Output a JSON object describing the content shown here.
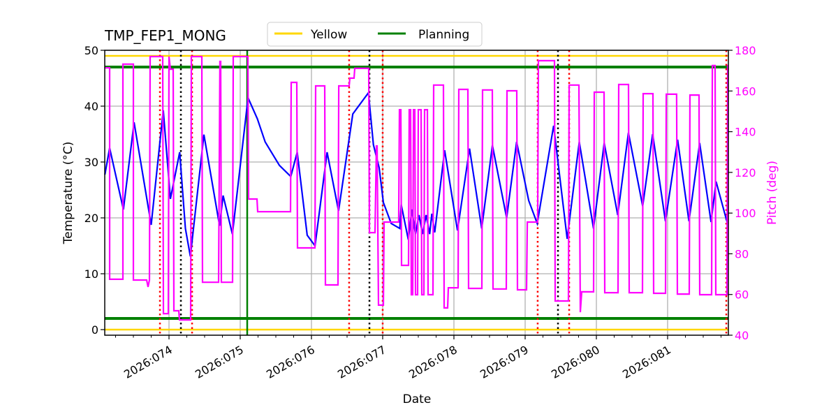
{
  "chart_data": {
    "type": "line",
    "title": "TMP_FEP1_MONG",
    "xlabel": "Date",
    "ylabel": "Temperature ($^\\circ$C)",
    "ylabel_display": "Temperature (°C)",
    "y2label": "Pitch (deg)",
    "xlim": [
      73.098,
      81.853
    ],
    "ylim": [
      -1,
      50
    ],
    "y2lim": [
      40,
      180
    ],
    "grid": true,
    "legend_placement": "top-center",
    "x_ticks": [
      74,
      75,
      76,
      77,
      78,
      79,
      80,
      81
    ],
    "x_tick_labels": [
      "2026:074",
      "2026:075",
      "2026:076",
      "2026:077",
      "2026:078",
      "2026:079",
      "2026:080",
      "2026:081"
    ],
    "y_ticks": [
      0,
      10,
      20,
      30,
      40,
      50
    ],
    "y2_ticks": [
      40,
      60,
      80,
      100,
      120,
      140,
      160,
      180
    ],
    "colors": {
      "temperature": "#0000ff",
      "pitch": "#ff00ff",
      "yellow": "#ffd700",
      "planning": "#008000",
      "red_event": "#ff0000",
      "black_event": "#000000",
      "grid": "#b0b0b0"
    },
    "legend": [
      {
        "name": "Yellow",
        "color": "#ffd700"
      },
      {
        "name": "Planning",
        "color": "#008000"
      }
    ],
    "hlines": [
      {
        "group": "Yellow",
        "y": 49,
        "color": "#ffd700"
      },
      {
        "group": "Yellow",
        "y": 0,
        "color": "#ffd700"
      },
      {
        "group": "Planning",
        "y": 47,
        "color": "#008000"
      },
      {
        "group": "Planning",
        "y": 2,
        "color": "#008000"
      }
    ],
    "vlines": [
      {
        "x": 73.873,
        "color": "#ff0000",
        "style": "dotted"
      },
      {
        "x": 74.324,
        "color": "#ff0000",
        "style": "dotted"
      },
      {
        "x": 76.529,
        "color": "#ff0000",
        "style": "dotted"
      },
      {
        "x": 77.0,
        "color": "#ff0000",
        "style": "dotted"
      },
      {
        "x": 79.176,
        "color": "#ff0000",
        "style": "dotted"
      },
      {
        "x": 79.618,
        "color": "#ff0000",
        "style": "dotted"
      },
      {
        "x": 81.824,
        "color": "#ff0000",
        "style": "dotted"
      },
      {
        "x": 74.167,
        "color": "#000000",
        "style": "dotted"
      },
      {
        "x": 76.814,
        "color": "#000000",
        "style": "dotted"
      },
      {
        "x": 79.461,
        "color": "#000000",
        "style": "dotted"
      },
      {
        "x": 75.098,
        "color": "#008000",
        "style": "solid"
      }
    ],
    "temperature": [
      [
        73.1,
        27.75
      ],
      [
        73.167,
        32.5
      ],
      [
        73.36,
        21.5
      ],
      [
        73.51,
        37.1
      ],
      [
        73.75,
        18.75
      ],
      [
        73.92,
        39.25
      ],
      [
        74.02,
        23.4
      ],
      [
        74.15,
        31.75
      ],
      [
        74.23,
        18.1
      ],
      [
        74.3,
        13.1
      ],
      [
        74.49,
        34.9
      ],
      [
        74.71,
        18.6
      ],
      [
        74.76,
        24
      ],
      [
        74.89,
        17.1
      ],
      [
        75.11,
        41.5
      ],
      [
        75.24,
        37.75
      ],
      [
        75.35,
        33.6
      ],
      [
        75.55,
        29.4
      ],
      [
        75.71,
        27.4
      ],
      [
        75.8,
        31.75
      ],
      [
        75.94,
        16.9
      ],
      [
        76.05,
        15
      ],
      [
        76.22,
        31.75
      ],
      [
        76.38,
        21.25
      ],
      [
        76.58,
        38.6
      ],
      [
        76.8,
        42.4
      ],
      [
        76.87,
        33.1
      ],
      [
        76.95,
        29
      ],
      [
        77.01,
        22.75
      ],
      [
        77.12,
        19
      ],
      [
        77.24,
        18.1
      ],
      [
        77.26,
        22.4
      ],
      [
        77.36,
        16.1
      ],
      [
        77.41,
        21.5
      ],
      [
        77.46,
        17.1
      ],
      [
        77.51,
        20.5
      ],
      [
        77.56,
        17.1
      ],
      [
        77.61,
        20.5
      ],
      [
        77.66,
        17.1
      ],
      [
        77.69,
        20.75
      ],
      [
        77.73,
        17.4
      ],
      [
        77.87,
        32.1
      ],
      [
        78.05,
        17.75
      ],
      [
        78.22,
        32.4
      ],
      [
        78.39,
        18.1
      ],
      [
        78.54,
        33
      ],
      [
        78.74,
        20
      ],
      [
        78.88,
        33.6
      ],
      [
        79.05,
        23.1
      ],
      [
        79.17,
        19
      ],
      [
        79.4,
        36.5
      ],
      [
        79.59,
        16.25
      ],
      [
        79.76,
        33.6
      ],
      [
        79.96,
        18.1
      ],
      [
        80.11,
        33.4
      ],
      [
        80.3,
        20.5
      ],
      [
        80.45,
        35.25
      ],
      [
        80.65,
        22.1
      ],
      [
        80.79,
        35
      ],
      [
        80.97,
        19.4
      ],
      [
        81.14,
        34
      ],
      [
        81.3,
        19.4
      ],
      [
        81.45,
        33.4
      ],
      [
        81.61,
        19.25
      ],
      [
        81.68,
        26.5
      ],
      [
        81.84,
        19
      ]
    ],
    "pitch": [
      [
        73.1,
        171.4
      ],
      [
        73.167,
        171.4
      ],
      [
        73.167,
        67.5
      ],
      [
        73.353,
        67.5
      ],
      [
        73.353,
        173.2
      ],
      [
        73.5,
        173.2
      ],
      [
        73.5,
        67.1
      ],
      [
        73.686,
        67.1
      ],
      [
        73.706,
        63.7
      ],
      [
        73.725,
        67.1
      ],
      [
        73.735,
        176.9
      ],
      [
        73.912,
        176.9
      ],
      [
        73.922,
        50.6
      ],
      [
        73.99,
        50.6
      ],
      [
        74.0,
        176.9
      ],
      [
        74.02,
        170.7
      ],
      [
        74.059,
        170.7
      ],
      [
        74.069,
        52
      ],
      [
        74.137,
        52
      ],
      [
        74.147,
        47.5
      ],
      [
        74.304,
        47.5
      ],
      [
        74.314,
        176.9
      ],
      [
        74.461,
        176.9
      ],
      [
        74.471,
        66
      ],
      [
        74.696,
        66
      ],
      [
        74.715,
        174.5
      ],
      [
        74.725,
        174.5
      ],
      [
        74.735,
        66
      ],
      [
        74.892,
        66
      ],
      [
        74.902,
        176.9
      ],
      [
        75.108,
        176.9
      ],
      [
        75.118,
        106.9
      ],
      [
        75.235,
        106.9
      ],
      [
        75.245,
        100.7
      ],
      [
        75.706,
        100.7
      ],
      [
        75.716,
        164.2
      ],
      [
        75.794,
        164.2
      ],
      [
        75.804,
        82.9
      ],
      [
        76.049,
        82.9
      ],
      [
        76.059,
        162.5
      ],
      [
        76.186,
        162.5
      ],
      [
        76.196,
        64.7
      ],
      [
        76.373,
        64.7
      ],
      [
        76.383,
        162.5
      ],
      [
        76.529,
        162.5
      ],
      [
        76.539,
        166.3
      ],
      [
        76.598,
        166.3
      ],
      [
        76.608,
        171.1
      ],
      [
        76.804,
        171.1
      ],
      [
        76.814,
        90.4
      ],
      [
        76.892,
        90.4
      ],
      [
        76.912,
        133
      ],
      [
        76.922,
        133
      ],
      [
        76.941,
        54.8
      ],
      [
        77.01,
        54.8
      ],
      [
        77.02,
        95.6
      ],
      [
        77.225,
        95.6
      ],
      [
        77.235,
        150.8
      ],
      [
        77.255,
        150.8
      ],
      [
        77.265,
        74.3
      ],
      [
        77.363,
        74.3
      ],
      [
        77.373,
        150.8
      ],
      [
        77.392,
        150.8
      ],
      [
        77.402,
        59.9
      ],
      [
        77.422,
        59.9
      ],
      [
        77.432,
        150.8
      ],
      [
        77.451,
        150.8
      ],
      [
        77.461,
        59.9
      ],
      [
        77.49,
        59.9
      ],
      [
        77.5,
        150.8
      ],
      [
        77.539,
        150.8
      ],
      [
        77.549,
        59.9
      ],
      [
        77.578,
        59.9
      ],
      [
        77.588,
        150.8
      ],
      [
        77.627,
        150.8
      ],
      [
        77.637,
        59.9
      ],
      [
        77.706,
        59.9
      ],
      [
        77.716,
        162.9
      ],
      [
        77.853,
        162.9
      ],
      [
        77.863,
        53.4
      ],
      [
        77.912,
        53.4
      ],
      [
        77.922,
        63.3
      ],
      [
        78.059,
        63.3
      ],
      [
        78.069,
        160.8
      ],
      [
        78.196,
        160.8
      ],
      [
        78.206,
        63
      ],
      [
        78.392,
        63
      ],
      [
        78.402,
        160.5
      ],
      [
        78.539,
        160.5
      ],
      [
        78.549,
        62.7
      ],
      [
        78.735,
        62.7
      ],
      [
        78.745,
        160.1
      ],
      [
        78.882,
        160.1
      ],
      [
        78.892,
        62.3
      ],
      [
        79.02,
        62.3
      ],
      [
        79.03,
        95.6
      ],
      [
        79.176,
        95.6
      ],
      [
        79.186,
        174.9
      ],
      [
        79.412,
        174.9
      ],
      [
        79.422,
        56.8
      ],
      [
        79.608,
        56.8
      ],
      [
        79.618,
        162.9
      ],
      [
        79.755,
        162.9
      ],
      [
        79.775,
        51.3
      ],
      [
        79.794,
        61.3
      ],
      [
        79.961,
        61.3
      ],
      [
        79.971,
        159.4
      ],
      [
        80.108,
        159.4
      ],
      [
        80.118,
        60.9
      ],
      [
        80.304,
        60.9
      ],
      [
        80.314,
        163.2
      ],
      [
        80.451,
        163.2
      ],
      [
        80.461,
        60.9
      ],
      [
        80.647,
        60.9
      ],
      [
        80.657,
        158.7
      ],
      [
        80.794,
        158.7
      ],
      [
        80.804,
        60.6
      ],
      [
        80.971,
        60.6
      ],
      [
        80.981,
        158.4
      ],
      [
        81.127,
        158.4
      ],
      [
        81.137,
        60.2
      ],
      [
        81.304,
        60.2
      ],
      [
        81.314,
        158
      ],
      [
        81.441,
        158
      ],
      [
        81.451,
        59.9
      ],
      [
        81.618,
        59.9
      ],
      [
        81.628,
        172.5
      ],
      [
        81.667,
        172.5
      ],
      [
        81.677,
        59.9
      ],
      [
        81.833,
        59.9
      ],
      [
        81.843,
        172.5
      ],
      [
        81.853,
        172.5
      ]
    ]
  }
}
